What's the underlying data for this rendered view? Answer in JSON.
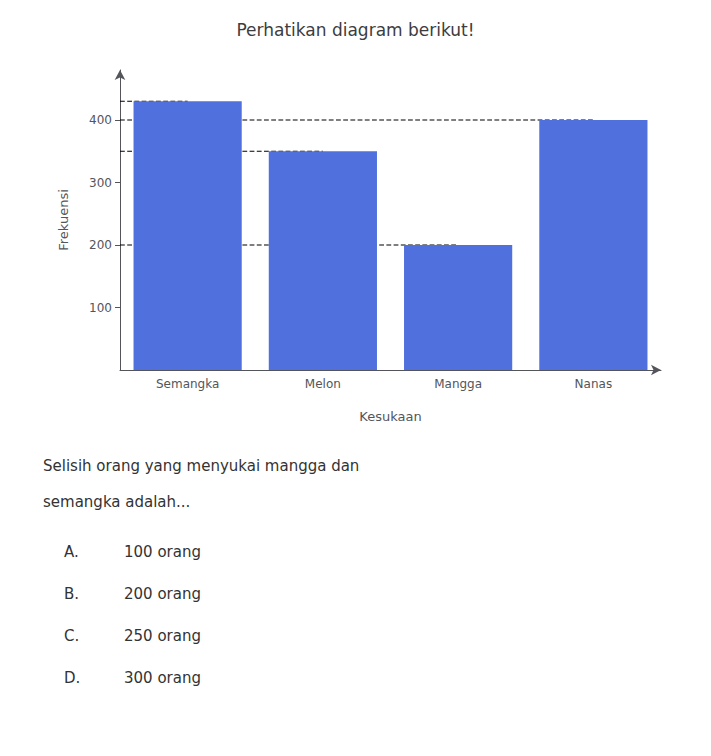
{
  "chart_data": {
    "type": "bar",
    "title": "Perhatikan diagram berikut!",
    "categories": [
      "Semangka",
      "Melon",
      "Mangga",
      "Nanas"
    ],
    "values": [
      430,
      350,
      200,
      400
    ],
    "xlabel": "Kesukaan",
    "ylabel": "Frekuensi",
    "ylim": [
      0,
      480
    ],
    "yticks": [
      100,
      200,
      300,
      400
    ],
    "grid": false,
    "question": [
      "Selisih orang yang menyukai mangga dan",
      "semangka adalah..."
    ],
    "options": [
      {
        "label": "A.",
        "text": "100 orang"
      },
      {
        "label": "B.",
        "text": "200 orang"
      },
      {
        "label": "C.",
        "text": "250 orang"
      },
      {
        "label": "D.",
        "text": "300 orang"
      }
    ]
  }
}
